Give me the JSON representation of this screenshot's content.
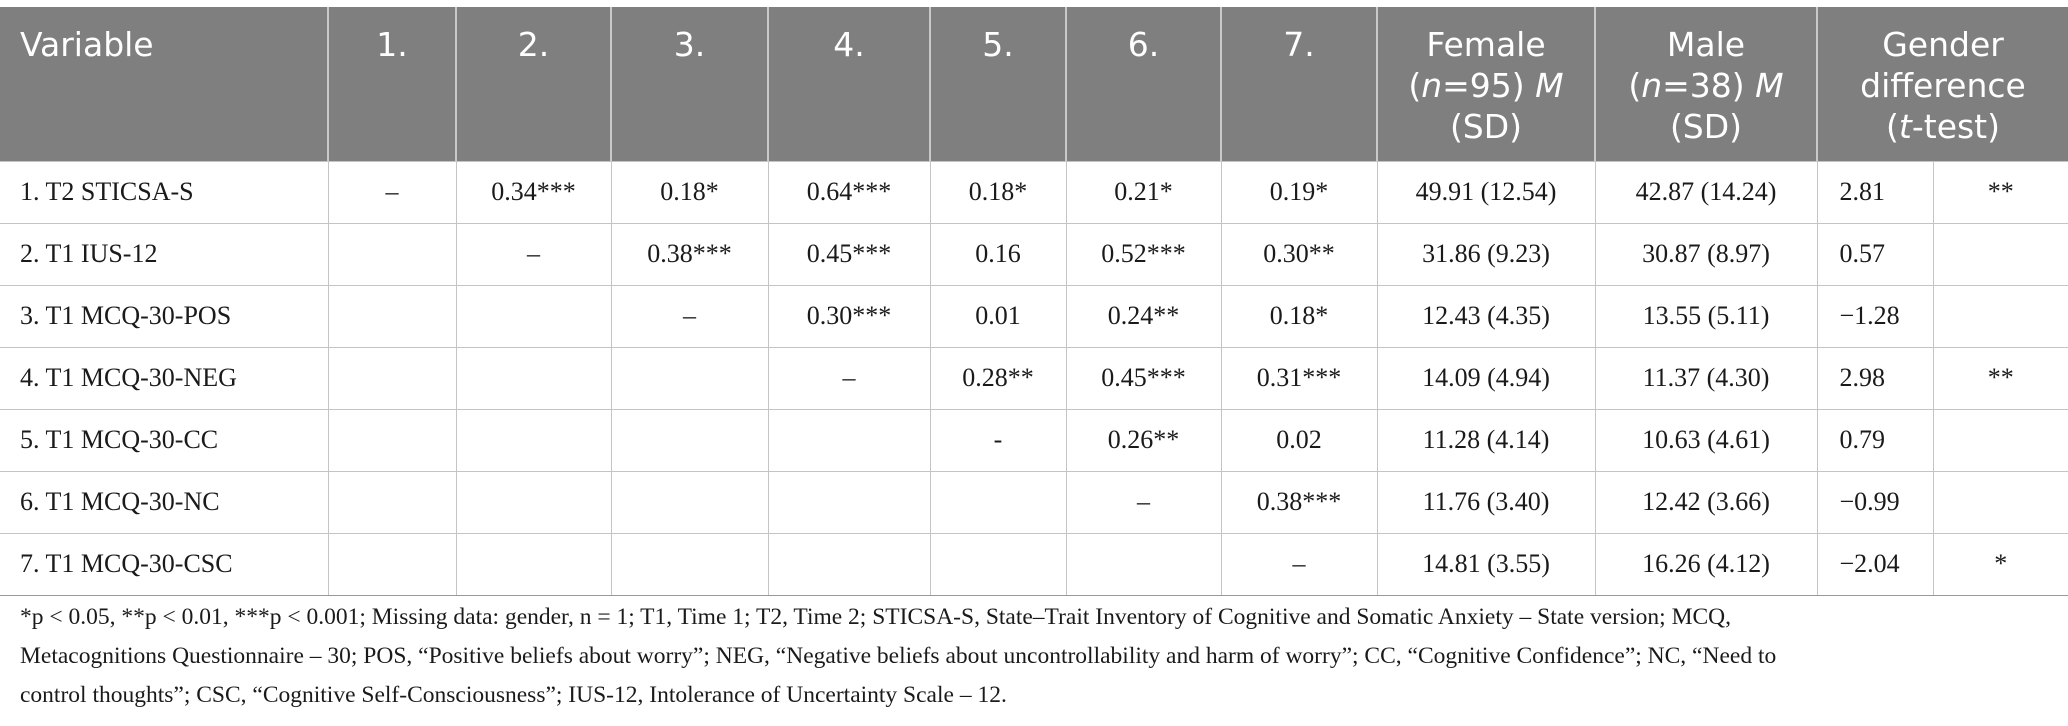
{
  "table": {
    "headers": [
      {
        "text": "Variable"
      },
      {
        "text": "1."
      },
      {
        "text": "2."
      },
      {
        "text": "3."
      },
      {
        "text": "4."
      },
      {
        "text": "5."
      },
      {
        "text": "6."
      },
      {
        "text": "7."
      },
      {
        "line1": "Female",
        "n_pre": "(",
        "n_var": "n",
        "n_post": "=95) ",
        "m_var": "M",
        "line3": "(SD)"
      },
      {
        "line1": "Male",
        "n_pre": "(",
        "n_var": "n",
        "n_post": "=38) ",
        "m_var": "M",
        "line3": "(SD)"
      },
      {
        "line1": "Gender",
        "line2": "difference",
        "t_pre": "(",
        "t_var": "t",
        "t_post": "-test)"
      }
    ],
    "rows": [
      {
        "variable": "1. T2 STICSA-S",
        "c1": "–",
        "c2": "0.34***",
        "c3": "0.18*",
        "c4": "0.64***",
        "c5": "0.18*",
        "c6": "0.21*",
        "c7": "0.19*",
        "female": "49.91 (12.54)",
        "male": "42.87 (14.24)",
        "t": "2.81",
        "sig": "**"
      },
      {
        "variable": "2. T1 IUS-12",
        "c1": "",
        "c2": "–",
        "c3": "0.38***",
        "c4": "0.45***",
        "c5": "0.16",
        "c6": "0.52***",
        "c7": "0.30**",
        "female": "31.86 (9.23)",
        "male": "30.87 (8.97)",
        "t": "0.57",
        "sig": ""
      },
      {
        "variable": "3. T1 MCQ-30-POS",
        "c1": "",
        "c2": "",
        "c3": "–",
        "c4": "0.30***",
        "c5": "0.01",
        "c6": "0.24**",
        "c7": "0.18*",
        "female": "12.43 (4.35)",
        "male": "13.55 (5.11)",
        "t": "−1.28",
        "sig": ""
      },
      {
        "variable": "4. T1 MCQ-30-NEG",
        "c1": "",
        "c2": "",
        "c3": "",
        "c4": "–",
        "c5": "0.28**",
        "c6": "0.45***",
        "c7": "0.31***",
        "female": "14.09 (4.94)",
        "male": "11.37 (4.30)",
        "t": "2.98",
        "sig": "**"
      },
      {
        "variable": "5. T1 MCQ-30-CC",
        "c1": "",
        "c2": "",
        "c3": "",
        "c4": "",
        "c5": "-",
        "c6": "0.26**",
        "c7": "0.02",
        "female": "11.28 (4.14)",
        "male": "10.63 (4.61)",
        "t": "0.79",
        "sig": ""
      },
      {
        "variable": "6. T1 MCQ-30-NC",
        "c1": "",
        "c2": "",
        "c3": "",
        "c4": "",
        "c5": "",
        "c6": "–",
        "c7": "0.38***",
        "female": "11.76 (3.40)",
        "male": "12.42 (3.66)",
        "t": "−0.99",
        "sig": ""
      },
      {
        "variable": "7. T1 MCQ-30-CSC",
        "c1": "",
        "c2": "",
        "c3": "",
        "c4": "",
        "c5": "",
        "c6": "",
        "c7": "–",
        "female": "14.81 (3.55)",
        "male": "16.26 (4.12)",
        "t": "−2.04",
        "sig": "*"
      }
    ]
  },
  "footnote": {
    "line1": "*p < 0.05, **p < 0.01, ***p < 0.001; Missing data: gender, n = 1; T1, Time 1; T2, Time 2; STICSA-S, State–Trait Inventory of Cognitive and Somatic Anxiety – State version; MCQ,",
    "line2": "Metacognitions Questionnaire – 30; POS, “Positive beliefs about worry”; NEG, “Negative beliefs about uncontrollability and harm of worry”; CC, “Cognitive Confidence”; NC, “Need to",
    "line3": "control thoughts”; CSC, “Cognitive Self-Consciousness”; IUS-12, Intolerance of Uncertainty Scale – 12."
  }
}
